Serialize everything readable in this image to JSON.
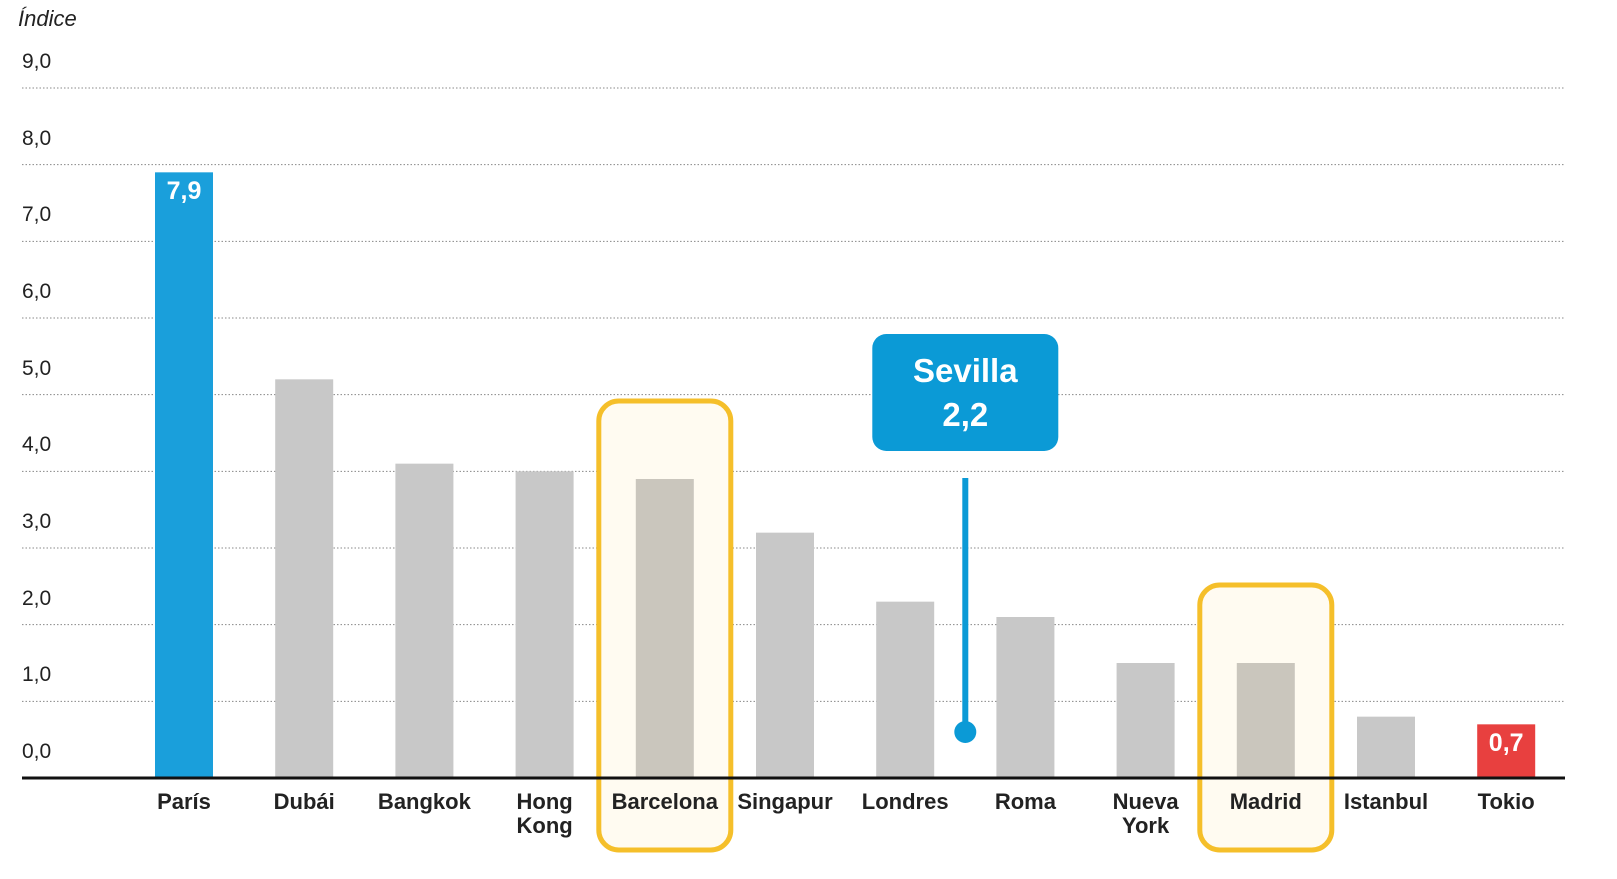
{
  "chart_data": {
    "type": "bar",
    "y_label": "Índice",
    "categories": [
      "París",
      "Dubái",
      "Bangkok",
      "Hong Kong",
      "Barcelona",
      "Singapur",
      "Londres",
      "Roma",
      "Nueva York",
      "Madrid",
      "Istanbul",
      "Tokio"
    ],
    "values": [
      7.9,
      5.2,
      4.1,
      4.0,
      3.9,
      3.2,
      2.3,
      2.1,
      1.5,
      1.5,
      0.8,
      0.7
    ],
    "value_labels": [
      "7,9",
      null,
      null,
      null,
      null,
      null,
      null,
      null,
      null,
      null,
      null,
      "0,7"
    ],
    "colors": [
      "#1a9fdb",
      "#c8c8c8",
      "#c8c8c8",
      "#c8c8c8",
      "#cac6bd",
      "#c8c8c8",
      "#c8c8c8",
      "#c8c8c8",
      "#c8c8c8",
      "#cac6bd",
      "#c8c8c8",
      "#e8403f"
    ],
    "highlight": [
      4,
      9
    ],
    "highlight_color": "#f5bf2a",
    "annotation": {
      "text": "Sevilla",
      "value": 2.2,
      "value_label": "2,2",
      "color": "#0b9ad6"
    },
    "ylim": [
      0,
      9
    ],
    "yticks": [
      {
        "value": 0,
        "label": "0,0"
      },
      {
        "value": 1,
        "label": "1,0"
      },
      {
        "value": 2,
        "label": "2,0"
      },
      {
        "value": 3,
        "label": "3,0"
      },
      {
        "value": 4,
        "label": "4,0"
      },
      {
        "value": 5,
        "label": "5,0"
      },
      {
        "value": 6,
        "label": "6,0"
      },
      {
        "value": 7,
        "label": "7,0"
      },
      {
        "value": 8,
        "label": "8,0"
      },
      {
        "value": 9,
        "label": "9,0"
      }
    ],
    "grid": true
  }
}
